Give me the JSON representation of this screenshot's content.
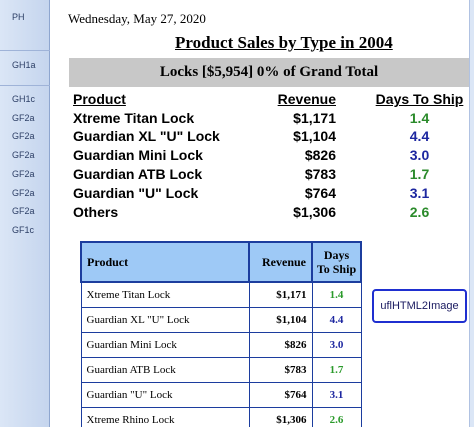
{
  "gutter": {
    "labels": [
      "PH",
      "GH1a",
      "GH1c",
      "GF2a",
      "GF2a",
      "GF2a",
      "GF2a",
      "GF2a",
      "GF2a",
      "GF1c"
    ]
  },
  "report": {
    "date": "Wednesday, May 27, 2020",
    "title": "Product Sales by Type in 2004",
    "banner": "Locks  [$5,954]  0% of Grand Total"
  },
  "summary": {
    "headers": {
      "product": "Product",
      "revenue": "Revenue",
      "days": "Days To Ship"
    },
    "rows": [
      {
        "product": "Xtreme Titan Lock",
        "revenue": "$1,171",
        "days": "1.4",
        "days_color": "green"
      },
      {
        "product": "Guardian XL \"U\" Lock",
        "revenue": "$1,104",
        "days": "4.4",
        "days_color": "blue"
      },
      {
        "product": "Guardian Mini Lock",
        "revenue": "$826",
        "days": "3.0",
        "days_color": "blue"
      },
      {
        "product": "Guardian ATB Lock",
        "revenue": "$783",
        "days": "1.7",
        "days_color": "green"
      },
      {
        "product": "Guardian \"U\" Lock",
        "revenue": "$764",
        "days": "3.1",
        "days_color": "blue"
      },
      {
        "product": "Others",
        "revenue": "$1,306",
        "days": "2.6",
        "days_color": "green"
      }
    ]
  },
  "table": {
    "headers": {
      "product": "Product",
      "revenue": "Revenue",
      "days_line1": "Days",
      "days_line2": "To Ship"
    },
    "rows": [
      {
        "product": "Xtreme Titan Lock",
        "revenue": "$1,171",
        "days": "1.4",
        "days_color": "green"
      },
      {
        "product": "Guardian XL \"U\" Lock",
        "revenue": "$1,104",
        "days": "4.4",
        "days_color": "blue"
      },
      {
        "product": "Guardian Mini Lock",
        "revenue": "$826",
        "days": "3.0",
        "days_color": "blue"
      },
      {
        "product": "Guardian ATB Lock",
        "revenue": "$783",
        "days": "1.7",
        "days_color": "green"
      },
      {
        "product": "Guardian \"U\" Lock",
        "revenue": "$764",
        "days": "3.1",
        "days_color": "blue"
      },
      {
        "product": "Xtreme Rhino Lock",
        "revenue": "$1,306",
        "days": "2.6",
        "days_color": "green"
      }
    ]
  },
  "tag": {
    "label": "uflHTML2Image"
  },
  "colors": {
    "green": "#2a8a2a",
    "blue": "#1d27a0",
    "header_fill": "#9ec9f6",
    "border": "#1c3d9e"
  }
}
